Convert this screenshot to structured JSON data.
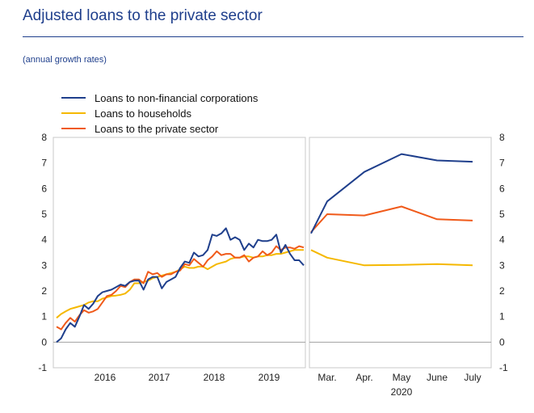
{
  "header": {
    "title": "Adjusted loans to the private sector",
    "subtitle": "(annual growth rates)"
  },
  "chart_data": {
    "type": "line",
    "title": "Adjusted loans to the private sector",
    "subtitle": "(annual growth rates)",
    "ylim": [
      -1,
      8
    ],
    "yticks": [
      -1,
      0,
      1,
      2,
      3,
      4,
      5,
      6,
      7,
      8
    ],
    "grid": false,
    "legend_position": "top-left",
    "colors": {
      "nfc": "#1f3f8c",
      "households": "#f5b800",
      "private": "#f05a1a",
      "zero_line": "#a0a0a0",
      "axis": "#c8c8c8"
    },
    "panels": [
      {
        "name": "monthly history",
        "x_labels": [
          "2016",
          "2017",
          "2018",
          "2019"
        ],
        "series": [
          {
            "key": "nfc",
            "name": "Loans to non-financial corporations",
            "values": [
              0.0,
              0.15,
              0.5,
              0.75,
              0.6,
              1.0,
              1.45,
              1.3,
              1.5,
              1.8,
              1.95,
              2.0,
              2.05,
              2.15,
              2.25,
              2.2,
              2.35,
              2.4,
              2.4,
              2.05,
              2.45,
              2.55,
              2.55,
              2.1,
              2.35,
              2.45,
              2.55,
              2.9,
              3.15,
              3.1,
              3.5,
              3.35,
              3.4,
              3.6,
              4.2,
              4.15,
              4.25,
              4.45,
              4.0,
              4.1,
              4.0,
              3.6,
              3.85,
              3.7,
              4.0,
              3.95,
              3.95,
              4.0,
              4.2,
              3.5,
              3.8,
              3.45,
              3.2,
              3.2,
              3.0
            ]
          },
          {
            "key": "households",
            "name": "Loans to households",
            "values": [
              0.95,
              1.1,
              1.2,
              1.3,
              1.35,
              1.4,
              1.45,
              1.55,
              1.6,
              1.6,
              1.7,
              1.75,
              1.8,
              1.82,
              1.85,
              1.9,
              2.05,
              2.3,
              2.3,
              2.35,
              2.4,
              2.5,
              2.55,
              2.6,
              2.65,
              2.7,
              2.75,
              2.85,
              2.95,
              2.9,
              2.9,
              2.95,
              2.95,
              2.85,
              2.95,
              3.05,
              3.1,
              3.15,
              3.25,
              3.3,
              3.3,
              3.35,
              3.35,
              3.3,
              3.35,
              3.35,
              3.4,
              3.4,
              3.45,
              3.45,
              3.5,
              3.55,
              3.6,
              3.6,
              3.6
            ]
          },
          {
            "key": "private",
            "name": "Loans to the private sector",
            "values": [
              0.6,
              0.5,
              0.75,
              0.95,
              0.8,
              1.05,
              1.25,
              1.15,
              1.2,
              1.3,
              1.55,
              1.8,
              1.85,
              2.0,
              2.2,
              2.15,
              2.35,
              2.45,
              2.45,
              2.3,
              2.75,
              2.65,
              2.7,
              2.55,
              2.65,
              2.65,
              2.75,
              2.8,
              3.05,
              3.0,
              3.25,
              3.1,
              2.95,
              3.2,
              3.35,
              3.55,
              3.4,
              3.45,
              3.45,
              3.3,
              3.3,
              3.4,
              3.15,
              3.3,
              3.35,
              3.55,
              3.4,
              3.5,
              3.75,
              3.6,
              3.7,
              3.7,
              3.65,
              3.75,
              3.7
            ]
          }
        ]
      },
      {
        "name": "2020",
        "x_labels": [
          "Mar.",
          "Apr.",
          "May",
          "June",
          "July"
        ],
        "x_sublabel": "2020",
        "series": [
          {
            "key": "nfc",
            "name": "Loans to non-financial corporations",
            "values": [
              4.25,
              5.5,
              6.65,
              7.35,
              7.1,
              7.05
            ]
          },
          {
            "key": "households",
            "name": "Loans to households",
            "values": [
              3.6,
              3.3,
              3.0,
              3.02,
              3.05,
              3.0
            ]
          },
          {
            "key": "private",
            "name": "Loans to the private sector",
            "values": [
              4.3,
              5.0,
              4.95,
              5.3,
              4.8,
              4.75
            ]
          }
        ]
      }
    ]
  }
}
